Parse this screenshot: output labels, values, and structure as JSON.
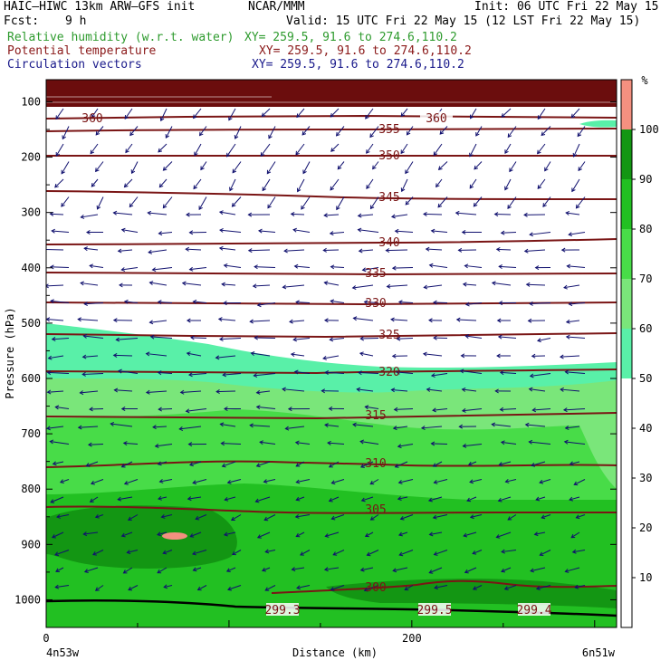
{
  "header": {
    "model": "HAIC–HIWC 13km ARW–GFS init",
    "org": "NCAR/MMM",
    "init": "Init: 06 UTC Fri 22 May 15",
    "fcst_label": "Fcst:",
    "fcst_value": "9 h",
    "valid": "Valid: 15 UTC Fri 22 May 15 (12 LST Fri 22 May 15)"
  },
  "fields": [
    {
      "label": "Relative humidity (w.r.t. water)",
      "xy": "XY= 259.5, 91.6 to 274.6,110.2",
      "color": "#2e9b2e"
    },
    {
      "label": "Potential temperature",
      "xy": "XY= 259.5, 91.6 to 274.6,110.2",
      "color": "#8b1a1a"
    },
    {
      "label": "Circulation vectors",
      "xy": "XY= 259.5, 91.6 to 274.6,110.2",
      "color": "#1a1a8b"
    }
  ],
  "chart_data": {
    "type": "heatmap",
    "description_fields": [
      "relative humidity (shaded)",
      "potential temperature (contours)",
      "circulation vectors"
    ],
    "xlabel": "Distance (km)",
    "ylabel": "Pressure (hPa)",
    "xlim": [
      0,
      312
    ],
    "ylim": [
      1050,
      60
    ],
    "x_ticks": [
      0,
      200
    ],
    "y_ticks": [
      100,
      200,
      300,
      400,
      500,
      600,
      700,
      800,
      900,
      1000
    ],
    "x_endpoints": {
      "left": "4n53w",
      "right": "6n51w"
    },
    "colorbar": {
      "unit": "%",
      "ticks": [
        10,
        20,
        30,
        40,
        50,
        60,
        70,
        80,
        90,
        100
      ],
      "bands": [
        {
          "from": 50,
          "to": 60,
          "color": "#59f0a8"
        },
        {
          "from": 60,
          "to": 70,
          "color": "#7ae67a"
        },
        {
          "from": 70,
          "to": 80,
          "color": "#48dc48"
        },
        {
          "from": 80,
          "to": 90,
          "color": "#22c022"
        },
        {
          "from": 90,
          "to": 100,
          "color": "#139613"
        },
        {
          "from": 100,
          "to": 110,
          "color": "#f49080"
        }
      ]
    },
    "rh_regions": [
      {
        "name": "rh-50-60",
        "level": 55,
        "color": "#59f0a8"
      },
      {
        "name": "rh-60-70",
        "level": 65,
        "color": "#7ae67a"
      },
      {
        "name": "rh-70-80",
        "level": 75,
        "color": "#48dc48"
      },
      {
        "name": "rh-80-90",
        "level": 85,
        "color": "#22c022"
      },
      {
        "name": "rh-90-100",
        "level": 95,
        "color": "#139613"
      },
      {
        "name": "rh-over-100",
        "level": 101,
        "color": "#f49080"
      }
    ],
    "theta_contours": [
      {
        "value": 300,
        "label": "300"
      },
      {
        "value": 305,
        "label": "305"
      },
      {
        "value": 310,
        "label": "310"
      },
      {
        "value": 315,
        "label": "315"
      },
      {
        "value": 320,
        "label": "320"
      },
      {
        "value": 325,
        "label": "325"
      },
      {
        "value": 330,
        "label": "330"
      },
      {
        "value": 335,
        "label": "335"
      },
      {
        "value": 340,
        "label": "340"
      },
      {
        "value": 345,
        "label": "345"
      },
      {
        "value": 350,
        "label": "350"
      },
      {
        "value": 355,
        "label": "355"
      },
      {
        "value": 360,
        "label": "360"
      }
    ],
    "extra_labels": [
      "360",
      "299.3",
      "299.5",
      "299.4"
    ],
    "vector_direction": "westward (easterly flow)"
  }
}
